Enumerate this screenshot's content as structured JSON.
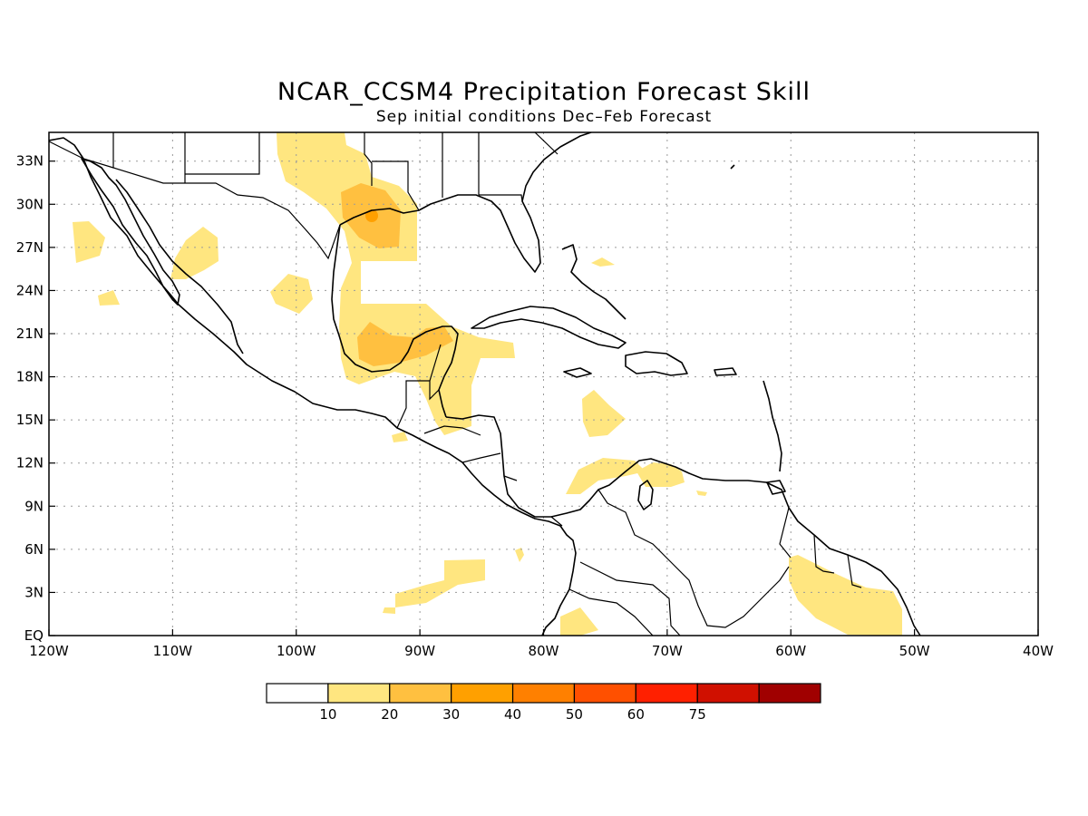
{
  "title": "NCAR_CCSM4 Precipitation Forecast Skill",
  "subtitle": "Sep initial conditions  Dec–Feb Forecast",
  "map": {
    "lon_range": [
      -120,
      -40
    ],
    "lat_range": [
      0,
      35
    ],
    "x_tick_labels": [
      "120W",
      "110W",
      "100W",
      "90W",
      "80W",
      "70W",
      "60W",
      "50W",
      "40W"
    ],
    "x_tick_values": [
      -120,
      -110,
      -100,
      -90,
      -80,
      -70,
      -60,
      -50,
      -40
    ],
    "y_tick_labels": [
      "EQ",
      "3N",
      "6N",
      "9N",
      "12N",
      "15N",
      "18N",
      "21N",
      "24N",
      "27N",
      "30N",
      "33N"
    ],
    "y_tick_values": [
      0,
      3,
      6,
      9,
      12,
      15,
      18,
      21,
      24,
      27,
      30,
      33
    ],
    "grid": "dotted"
  },
  "colorbar": {
    "labels": [
      "10",
      "20",
      "30",
      "40",
      "50",
      "60",
      "75"
    ],
    "colors": [
      "#ffffff",
      "#ffe680",
      "#ffc040",
      "#ffa000",
      "#ff8000",
      "#ff5000",
      "#ff2000",
      "#d01000",
      "#a00000"
    ]
  }
}
